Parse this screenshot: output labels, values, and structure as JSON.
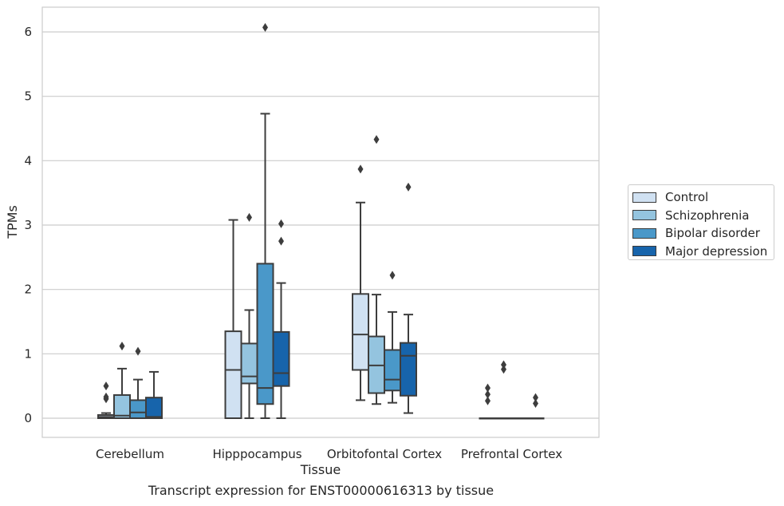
{
  "chart_data": {
    "type": "box",
    "title": "Transcript expression for ENST00000616313 by tissue",
    "xlabel": "Tissue",
    "ylabel": "TPMs",
    "ylim": [
      -0.3,
      6.4
    ],
    "yticks": [
      0,
      1,
      2,
      3,
      4,
      5,
      6
    ],
    "grid": "horizontal",
    "legend_position": "right",
    "categories": [
      "Cerebellum",
      "Hipppocampus",
      "Orbitofontal Cortex",
      "Prefrontal Cortex"
    ],
    "series": [
      {
        "name": "Control",
        "color": "#d0e1f2",
        "boxes": [
          {
            "min": 0,
            "q1": 0,
            "median": 0.02,
            "q3": 0.05,
            "max": 0.08,
            "outliers": [
              0.3,
              0.33,
              0.5
            ]
          },
          {
            "min": 0,
            "q1": 0,
            "median": 0.75,
            "q3": 1.35,
            "max": 3.08,
            "outliers": []
          },
          {
            "min": 0.28,
            "q1": 0.75,
            "median": 1.3,
            "q3": 1.93,
            "max": 3.35,
            "outliers": [
              3.87
            ]
          },
          {
            "min": 0,
            "q1": 0,
            "median": 0,
            "q3": 0,
            "max": 0,
            "outliers": [
              0.27,
              0.37,
              0.47
            ]
          }
        ]
      },
      {
        "name": "Schizophrenia",
        "color": "#94c4df",
        "boxes": [
          {
            "min": 0,
            "q1": 0,
            "median": 0.04,
            "q3": 0.36,
            "max": 0.77,
            "outliers": [
              1.12
            ]
          },
          {
            "min": 0,
            "q1": 0.54,
            "median": 0.65,
            "q3": 1.16,
            "max": 1.68,
            "outliers": [
              3.12
            ]
          },
          {
            "min": 0.22,
            "q1": 0.39,
            "median": 0.82,
            "q3": 1.27,
            "max": 1.92,
            "outliers": [
              4.33
            ]
          },
          {
            "min": 0,
            "q1": 0,
            "median": 0,
            "q3": 0,
            "max": 0,
            "outliers": [
              0.76,
              0.83
            ]
          }
        ]
      },
      {
        "name": "Bipolar disorder",
        "color": "#4a98c9",
        "boxes": [
          {
            "min": 0,
            "q1": 0,
            "median": 0.09,
            "q3": 0.28,
            "max": 0.6,
            "outliers": [
              1.04
            ]
          },
          {
            "min": 0,
            "q1": 0.22,
            "median": 0.47,
            "q3": 2.4,
            "max": 4.73,
            "outliers": [
              6.07
            ]
          },
          {
            "min": 0.24,
            "q1": 0.43,
            "median": 0.6,
            "q3": 1.06,
            "max": 1.65,
            "outliers": [
              2.22
            ]
          },
          {
            "min": 0,
            "q1": 0,
            "median": 0,
            "q3": 0,
            "max": 0,
            "outliers": []
          }
        ]
      },
      {
        "name": "Major depression",
        "color": "#1764ab",
        "boxes": [
          {
            "min": 0,
            "q1": 0,
            "median": 0.02,
            "q3": 0.32,
            "max": 0.72,
            "outliers": []
          },
          {
            "min": 0,
            "q1": 0.5,
            "median": 0.7,
            "q3": 1.34,
            "max": 2.1,
            "outliers": [
              2.75,
              3.02
            ]
          },
          {
            "min": 0.08,
            "q1": 0.35,
            "median": 0.97,
            "q3": 1.17,
            "max": 1.61,
            "outliers": [
              3.59
            ]
          },
          {
            "min": 0,
            "q1": 0,
            "median": 0,
            "q3": 0,
            "max": 0,
            "outliers": [
              0.23,
              0.32
            ]
          }
        ]
      }
    ]
  }
}
